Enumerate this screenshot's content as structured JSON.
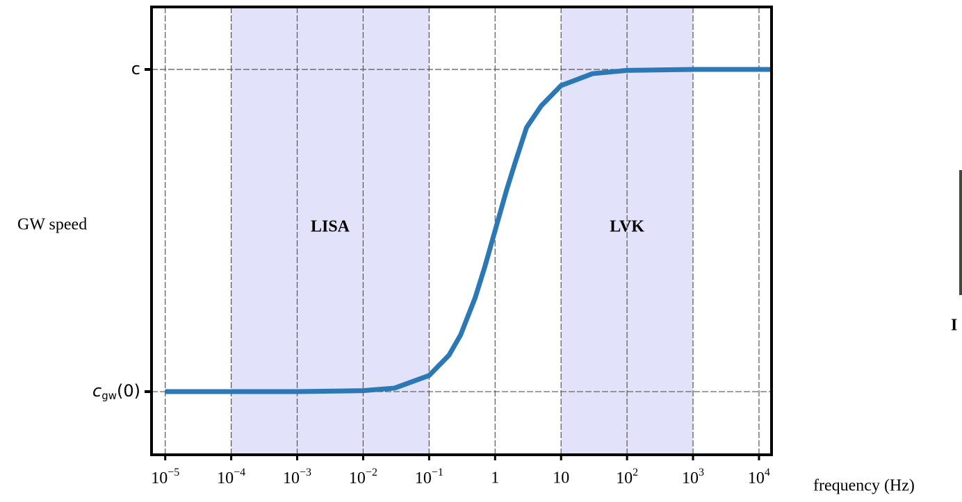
{
  "chart_data": {
    "type": "line",
    "x_label": "frequency (Hz)",
    "y_label": "GW speed",
    "x": [
      1e-05,
      0.0001,
      0.001,
      0.01,
      0.03,
      0.1,
      0.2,
      0.3,
      0.5,
      0.7,
      1,
      1.5,
      2,
      3,
      5,
      10,
      30,
      100,
      1000,
      15000
    ],
    "series": [
      {
        "name": "GW speed",
        "color": "#2b78b4",
        "values": [
          0,
          0,
          0,
          0.003,
          0.011,
          0.05,
          0.113,
          0.176,
          0.292,
          0.388,
          0.5,
          0.627,
          0.709,
          0.82,
          0.887,
          0.95,
          0.987,
          0.997,
          1,
          1
        ]
      }
    ],
    "xlim": [
      6.2e-06,
      15500
    ],
    "xscale": "log",
    "xticks": [
      {
        "value": 1e-05,
        "label": "10−5"
      },
      {
        "value": 0.0001,
        "label": "10−4"
      },
      {
        "value": 0.001,
        "label": "10−3"
      },
      {
        "value": 0.01,
        "label": "10−2"
      },
      {
        "value": 0.1,
        "label": "10−1"
      },
      1,
      10,
      {
        "value": 100,
        "label": "102"
      },
      {
        "value": 1000,
        "label": "103"
      },
      {
        "value": 10000,
        "label": "104"
      }
    ],
    "ylim": [
      -0.196,
      1.194
    ],
    "yticks": [
      {
        "value": 0,
        "label": "cgw(0)"
      },
      {
        "value": 1,
        "label": "c"
      }
    ],
    "grid": true,
    "bands": [
      {
        "name": "LISA",
        "x": [
          0.0001,
          0.1
        ],
        "color": "#e2e2fb"
      },
      {
        "name": "LVK",
        "x": [
          10,
          1000
        ],
        "color": "#e2e2fb"
      }
    ]
  },
  "fragment_text": "I"
}
